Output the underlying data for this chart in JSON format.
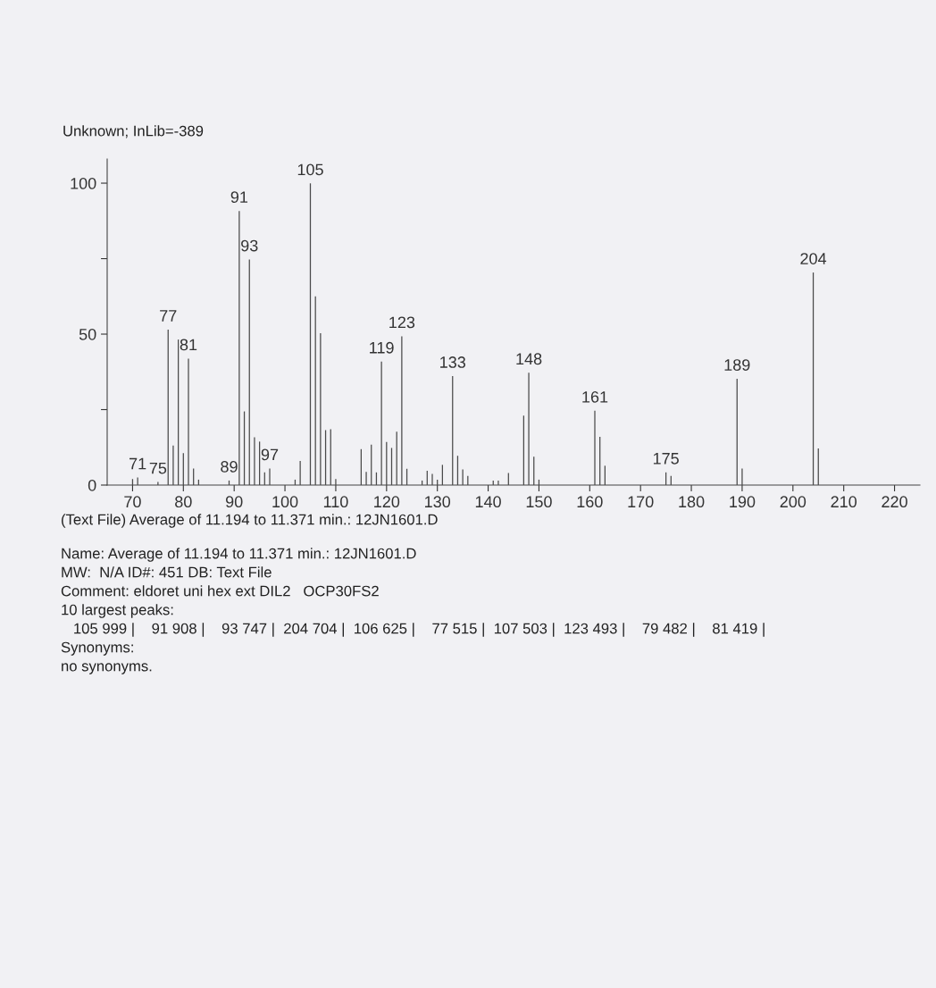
{
  "chart_data": {
    "type": "bar",
    "title": "Unknown; InLib=-389",
    "x": [
      70,
      71,
      75,
      77,
      78,
      79,
      80,
      81,
      82,
      83,
      89,
      91,
      92,
      93,
      94,
      95,
      96,
      97,
      102,
      103,
      105,
      106,
      107,
      108,
      109,
      110,
      115,
      116,
      117,
      118,
      119,
      120,
      121,
      122,
      123,
      124,
      127,
      128,
      129,
      130,
      131,
      133,
      134,
      135,
      136,
      141,
      142,
      144,
      147,
      148,
      149,
      150,
      161,
      162,
      163,
      175,
      176,
      189,
      190,
      204,
      205
    ],
    "values": [
      2,
      2.5,
      1,
      51.5,
      13.1,
      48.2,
      10.6,
      41.9,
      5.5,
      1.8,
      1.5,
      90.8,
      24.4,
      74.7,
      15.8,
      14.4,
      4.2,
      5.5,
      1.8,
      8,
      99.9,
      62.5,
      50.3,
      18.2,
      18.5,
      2,
      11.9,
      4.4,
      13.4,
      4.2,
      40.9,
      14.3,
      12.3,
      17.7,
      49.3,
      5.4,
      1.5,
      4.7,
      3.7,
      1.8,
      6.7,
      36.1,
      9.7,
      5.2,
      3,
      1.5,
      1.5,
      4,
      23,
      37.2,
      9.4,
      1.8,
      24.6,
      16,
      6.4,
      4.2,
      3,
      35.2,
      5.5,
      70.4,
      12.1
    ],
    "color": "#4a4a4a",
    "xlim": [
      65,
      225
    ],
    "ylim": [
      0,
      108
    ],
    "xticks": [
      70,
      80,
      90,
      100,
      110,
      120,
      130,
      140,
      150,
      160,
      170,
      180,
      190,
      200,
      210,
      220
    ],
    "yticks": [
      0,
      {
        "value": 25,
        "label": null
      },
      50,
      {
        "value": 75,
        "label": null
      },
      100
    ],
    "grid": false,
    "legend": false,
    "annotations": [
      {
        "text": "71",
        "x": 71,
        "y": 2.5
      },
      {
        "text": "75",
        "x": 75,
        "y": 1
      },
      {
        "text": "77",
        "x": 77,
        "y": 51.5
      },
      {
        "text": "81",
        "x": 81,
        "y": 41.9
      },
      {
        "text": "89",
        "x": 89,
        "y": 1.5
      },
      {
        "text": "91",
        "x": 91,
        "y": 90.8
      },
      {
        "text": "93",
        "x": 93,
        "y": 74.7
      },
      {
        "text": "97",
        "x": 97,
        "y": 5.5
      },
      {
        "text": "105",
        "x": 105,
        "y": 99.9
      },
      {
        "text": "119",
        "x": 119,
        "y": 40.9
      },
      {
        "text": "123",
        "x": 123,
        "y": 49.3
      },
      {
        "text": "133",
        "x": 133,
        "y": 36.1
      },
      {
        "text": "148",
        "x": 148,
        "y": 37.2
      },
      {
        "text": "161",
        "x": 161,
        "y": 24.6
      },
      {
        "text": "175",
        "x": 175,
        "y": 4.2
      },
      {
        "text": "189",
        "x": 189,
        "y": 35.2
      },
      {
        "text": "204",
        "x": 204,
        "y": 70.4
      },
      "(Text File) Average of 11.194 to 11.371 min.: 12JN1601.D",
      "Name: Average of 11.194 to 11.371 min.: 12JN1601.D",
      "MW:  N/A ID#: 451 DB: Text File",
      "Comment: eldoret uni hex ext DIL2   OCP30FS2",
      "10 largest peaks:",
      "   105 999 |    91 908 |    93 747 |  204 704 |  106 625 |    77 515 |  107 503 |  123 493 |    79 482 |    81 419 |",
      "Synonyms:",
      "no synonyms."
    ]
  }
}
